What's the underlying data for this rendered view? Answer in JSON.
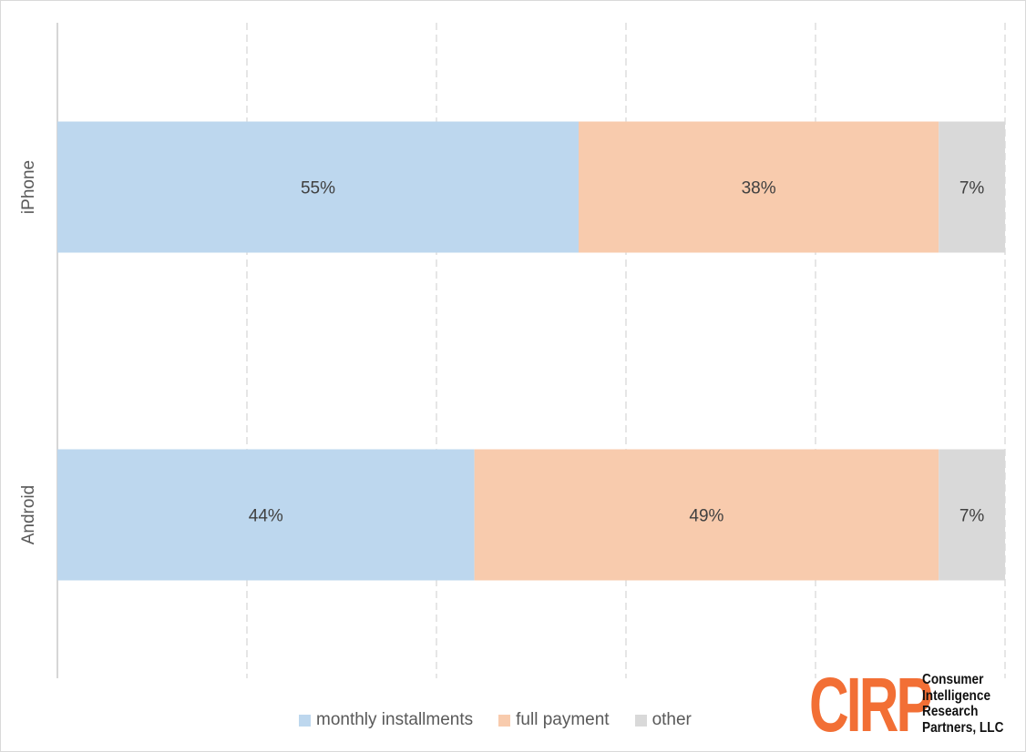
{
  "chart_data": {
    "type": "bar",
    "orientation": "horizontal",
    "stacked": true,
    "categories": [
      "iPhone",
      "Android"
    ],
    "series": [
      {
        "name": "monthly installments",
        "values": [
          55,
          44
        ],
        "color": "#bdd7ee"
      },
      {
        "name": "full payment",
        "values": [
          38,
          49
        ],
        "color": "#f8cbad"
      },
      {
        "name": "other",
        "values": [
          7,
          7
        ],
        "color": "#d9d9d9"
      }
    ],
    "data_labels": [
      [
        "55%",
        "38%",
        "7%"
      ],
      [
        "44%",
        "49%",
        "7%"
      ]
    ],
    "xlim": [
      0,
      100
    ],
    "x_gridlines": [
      20,
      40,
      60,
      80,
      100
    ],
    "grid": "vertical dashed",
    "legend_position": "bottom"
  },
  "logo": {
    "mark": "CIRP",
    "text": [
      "Consumer",
      "Intelligence",
      "Research",
      "Partners, LLC"
    ],
    "color": "#f26f35"
  }
}
